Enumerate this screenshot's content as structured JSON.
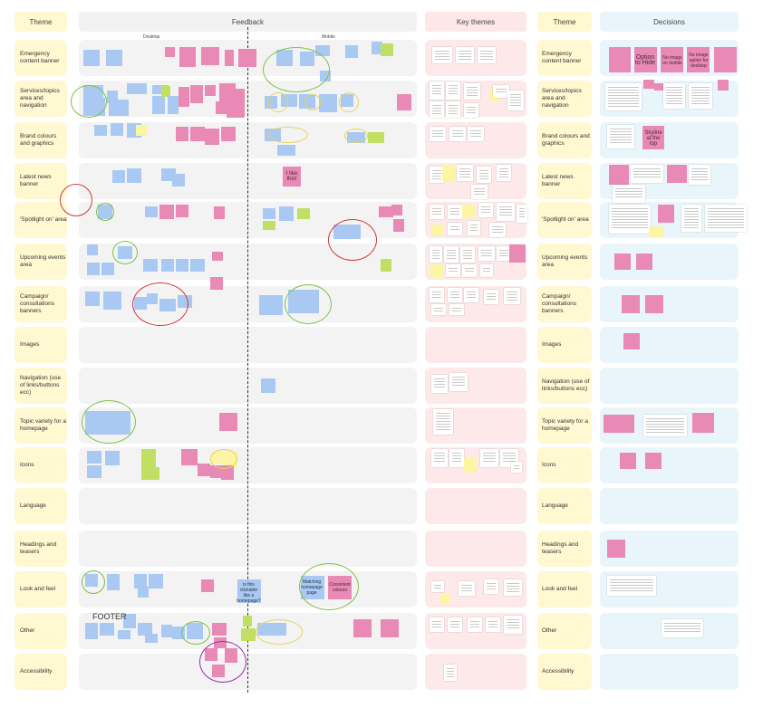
{
  "headers": {
    "theme": "Theme",
    "feedback": "Feedback",
    "key_themes": "Key themes",
    "theme_right": "Theme",
    "decisions": "Decisions"
  },
  "subheaders": {
    "desktop": "Desktop",
    "mobile": "Mobile"
  },
  "rows": [
    "Emergency content banner",
    "Services/topics  area and navigation",
    "Brand colours and graphics",
    "Latest news banner",
    "'Spotlight on' area",
    "Upcoming events area",
    "Campaign/ consultations banners",
    "Images",
    "Navigation (use of links/buttons ecc)",
    "Topic variety for a homepage",
    "Icons",
    "Language",
    "Headings and teasers",
    "Look and feel",
    "Other",
    "Accessibility"
  ],
  "decision_texts": {
    "option_to_hide": "Option to Hide",
    "no_image_mobile": "No image on mobile",
    "no_image_option_desktop": "No image option for desktop",
    "skyline_top": "Skyline at the top"
  },
  "feedback_texts": {
    "i_like_this": "I like this!",
    "footer": "FOOTER",
    "is_this_clickable": "is this clickable like a homepage?",
    "matching_homepage": "Matching homepage page",
    "consistent_colours": "Consistent colours"
  },
  "colors": {
    "theme_bg": "#fff8d0",
    "feedback_bg": "#f3f3f3",
    "key_bg": "#fde9ea",
    "decision_bg": "#e8f6fc",
    "blue_note": "#a9c9f2",
    "pink_note": "#e989b5",
    "green_note": "#c1df62",
    "yellow_note": "#fbf5a4"
  }
}
